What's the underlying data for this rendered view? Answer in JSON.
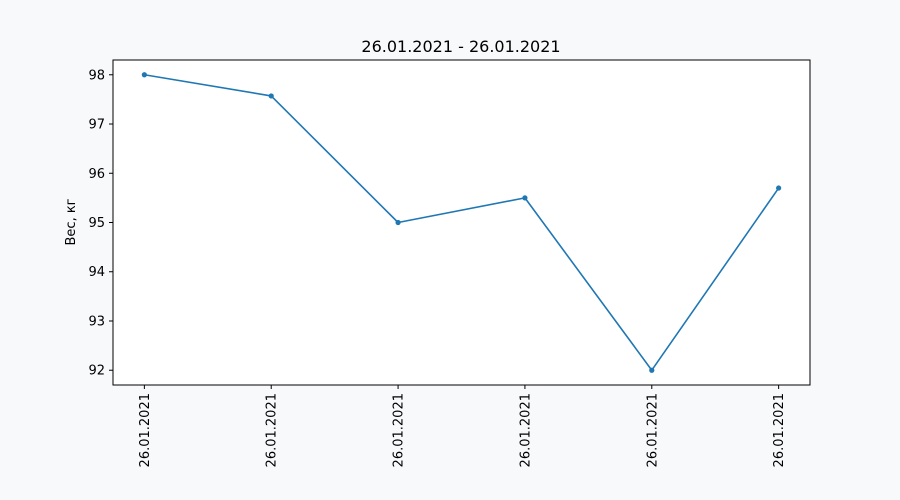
{
  "chart_data": {
    "type": "line",
    "title": "26.01.2021 - 26.01.2021",
    "xlabel": "",
    "ylabel": "Вес, кг",
    "categories": [
      "26.01.2021",
      "26.01.2021",
      "26.01.2021",
      "26.01.2021",
      "26.01.2021",
      "26.01.2021"
    ],
    "series": [
      {
        "values": [
          98.0,
          97.57,
          95.0,
          95.5,
          92.0,
          95.7
        ]
      }
    ],
    "yticks": [
      92,
      93,
      94,
      95,
      96,
      97,
      98
    ],
    "ylim": [
      91.7,
      98.3
    ],
    "grid": false,
    "line_color": "#1f77b4",
    "markers": true
  }
}
